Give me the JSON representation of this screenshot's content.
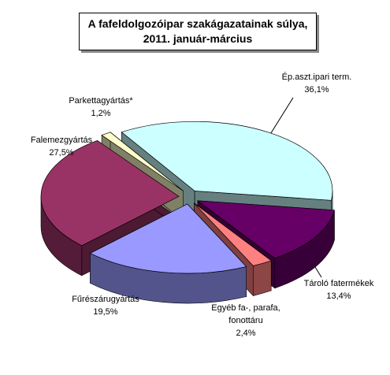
{
  "chart_data": {
    "type": "pie",
    "title": "A fafeldolgozóipar szakágazatainak súlya, 2011. január-március",
    "categories": [
      "Ép.aszt.ipari term.",
      "Tároló fatermékek",
      "Egyéb fa-, parafa, fonottáru",
      "Fűrészárugyártás",
      "Falemezgyártás",
      "Parkettagyártás*"
    ],
    "values": [
      36.1,
      13.4,
      2.4,
      19.5,
      27.5,
      1.2
    ],
    "value_labels": [
      "36,1%",
      "13,4%",
      "2,4%",
      "19,5%",
      "27,5%",
      "1,2%"
    ],
    "colors": [
      "#ccffff",
      "#660066",
      "#ff8080",
      "#9999ff",
      "#993366",
      "#ffffcc"
    ]
  }
}
